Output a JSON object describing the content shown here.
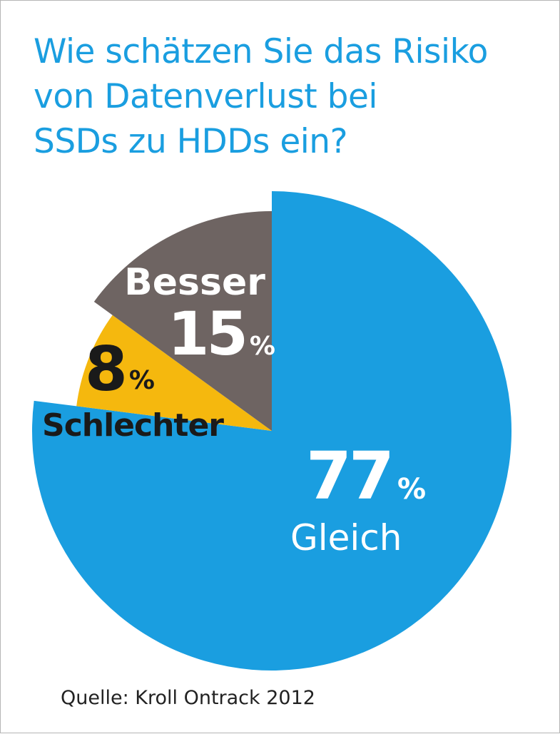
{
  "chart_data": {
    "type": "pie",
    "title": "Wie schätzen Sie das Risiko von Datenverlust bei SSDs zu HDDs ein?",
    "title_lines": [
      "Wie schätzen Sie das Risiko",
      "von Datenverlust bei",
      "SSDs zu HDDs ein?"
    ],
    "slices": [
      {
        "label": "Gleich",
        "value": 77,
        "value_text": "77",
        "unit": "%",
        "color": "#1a9ee0",
        "text_color": "#ffffff"
      },
      {
        "label": "Schlechter",
        "value": 8,
        "value_text": "8",
        "unit": "%",
        "color": "#f5b80e",
        "text_color": "#1a1a1a"
      },
      {
        "label": "Besser",
        "value": 15,
        "value_text": "15",
        "unit": "%",
        "color": "#6e6462",
        "text_color": "#ffffff"
      }
    ],
    "legend": "none",
    "source": "Quelle: Kroll Ontrack 2012"
  }
}
